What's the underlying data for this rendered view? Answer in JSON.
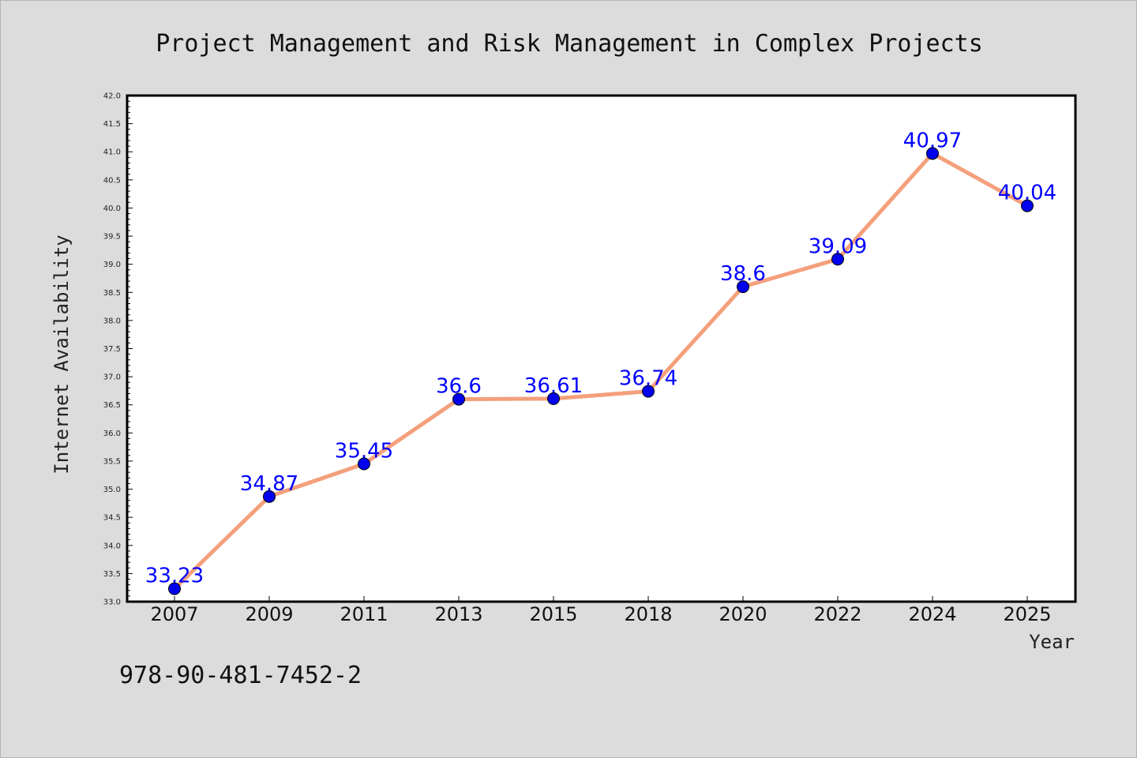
{
  "chart_data": {
    "type": "line",
    "title": "Project Management and Risk Management in Complex Projects",
    "xlabel": "Year",
    "ylabel": "Internet Availability",
    "categories": [
      "2007",
      "2009",
      "2011",
      "2013",
      "2015",
      "2018",
      "2020",
      "2022",
      "2024",
      "2025"
    ],
    "series": [
      {
        "values": [
          33.23,
          34.87,
          35.45,
          36.6,
          36.61,
          36.74,
          38.6,
          39.09,
          40.97,
          40.04
        ],
        "data_labels": [
          "33.23",
          "34.87",
          "35.45",
          "36.6",
          "36.61",
          "36.74",
          "38.6",
          "39.09",
          "40.97",
          "40.04"
        ],
        "line_color": "#f4a07c",
        "marker_color": "#0000ee"
      }
    ],
    "ylim": [
      33.0,
      42.0
    ],
    "yticks": [
      "33.0",
      "33.5",
      "34.0",
      "34.5",
      "35.0",
      "35.5",
      "36.0",
      "36.5",
      "37.0",
      "37.5",
      "38.0",
      "38.5",
      "39.0",
      "39.5",
      "40.0",
      "40.5",
      "41.0",
      "41.5",
      "42.0"
    ],
    "grid": false,
    "label_color": "#0000ff"
  },
  "footnote": "978-90-481-7452-2"
}
